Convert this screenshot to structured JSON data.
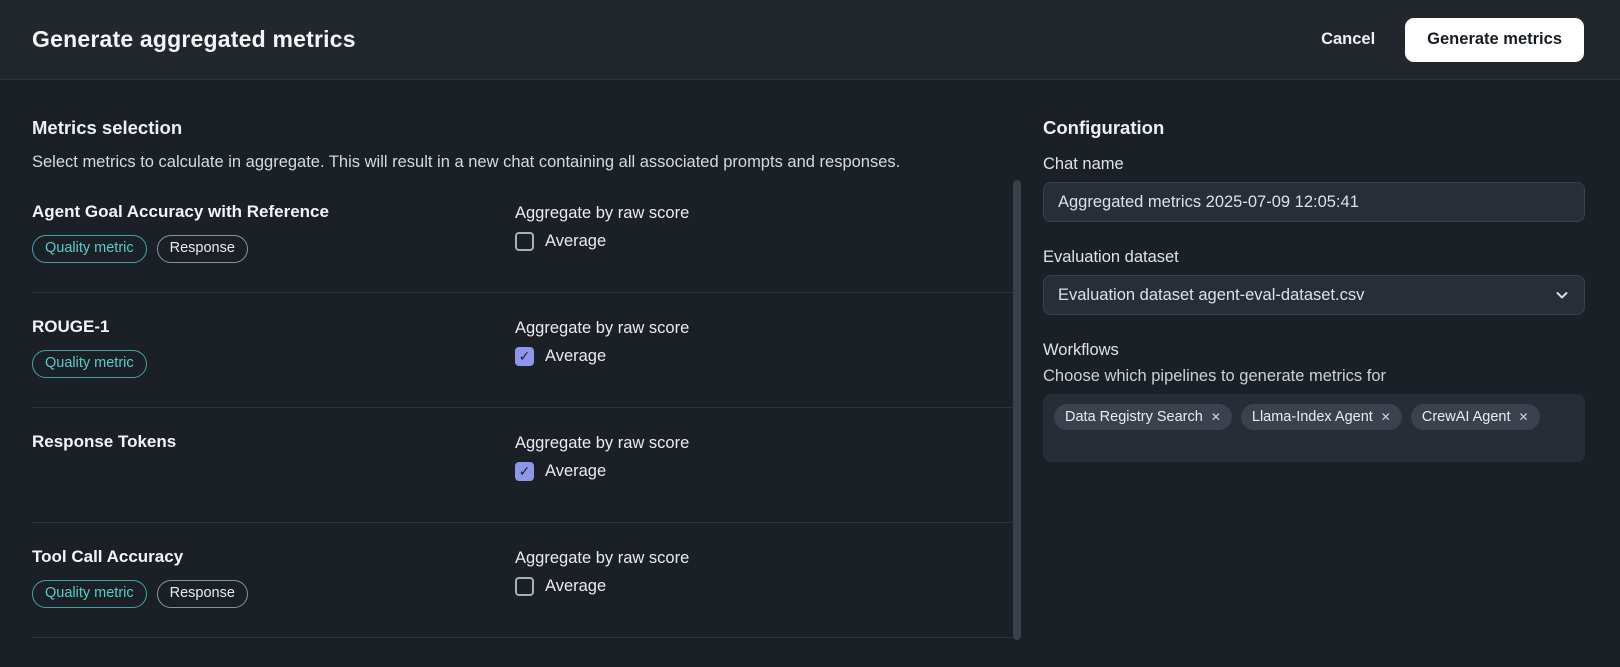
{
  "header": {
    "title": "Generate aggregated metrics",
    "cancel_label": "Cancel",
    "generate_label": "Generate metrics"
  },
  "metrics_selection": {
    "title": "Metrics selection",
    "description": "Select metrics to calculate in aggregate. This will result in a new chat containing all associated prompts and responses.",
    "aggregate_label": "Aggregate by raw score",
    "average_label": "Average",
    "metrics": [
      {
        "name": "Agent Goal Accuracy with Reference",
        "tags": [
          {
            "label": "Quality metric",
            "type": "quality"
          },
          {
            "label": "Response",
            "type": "default"
          }
        ],
        "average_checked": false
      },
      {
        "name": "ROUGE-1",
        "tags": [
          {
            "label": "Quality metric",
            "type": "quality"
          }
        ],
        "average_checked": true
      },
      {
        "name": "Response Tokens",
        "tags": [],
        "average_checked": true
      },
      {
        "name": "Tool Call Accuracy",
        "tags": [
          {
            "label": "Quality metric",
            "type": "quality"
          },
          {
            "label": "Response",
            "type": "default"
          }
        ],
        "average_checked": false
      }
    ]
  },
  "configuration": {
    "title": "Configuration",
    "chat_name_label": "Chat name",
    "chat_name_value": "Aggregated metrics 2025-07-09 12:05:41",
    "dataset_label": "Evaluation dataset",
    "dataset_value": "Evaluation dataset agent-eval-dataset.csv",
    "workflows_label": "Workflows",
    "workflows_description": "Choose which pipelines to generate metrics for",
    "workflow_tags": [
      "Data Registry Search",
      "Llama-Index Agent",
      "CrewAI Agent"
    ],
    "remove_icon": "✕",
    "checkmark_icon": "✓"
  },
  "colors": {
    "header_bg": "#22272e",
    "body_bg": "#1b2027",
    "accent_teal": "#55cdc8",
    "checkbox_checked": "#8e96ec",
    "primary_button_bg": "#ffffff"
  }
}
